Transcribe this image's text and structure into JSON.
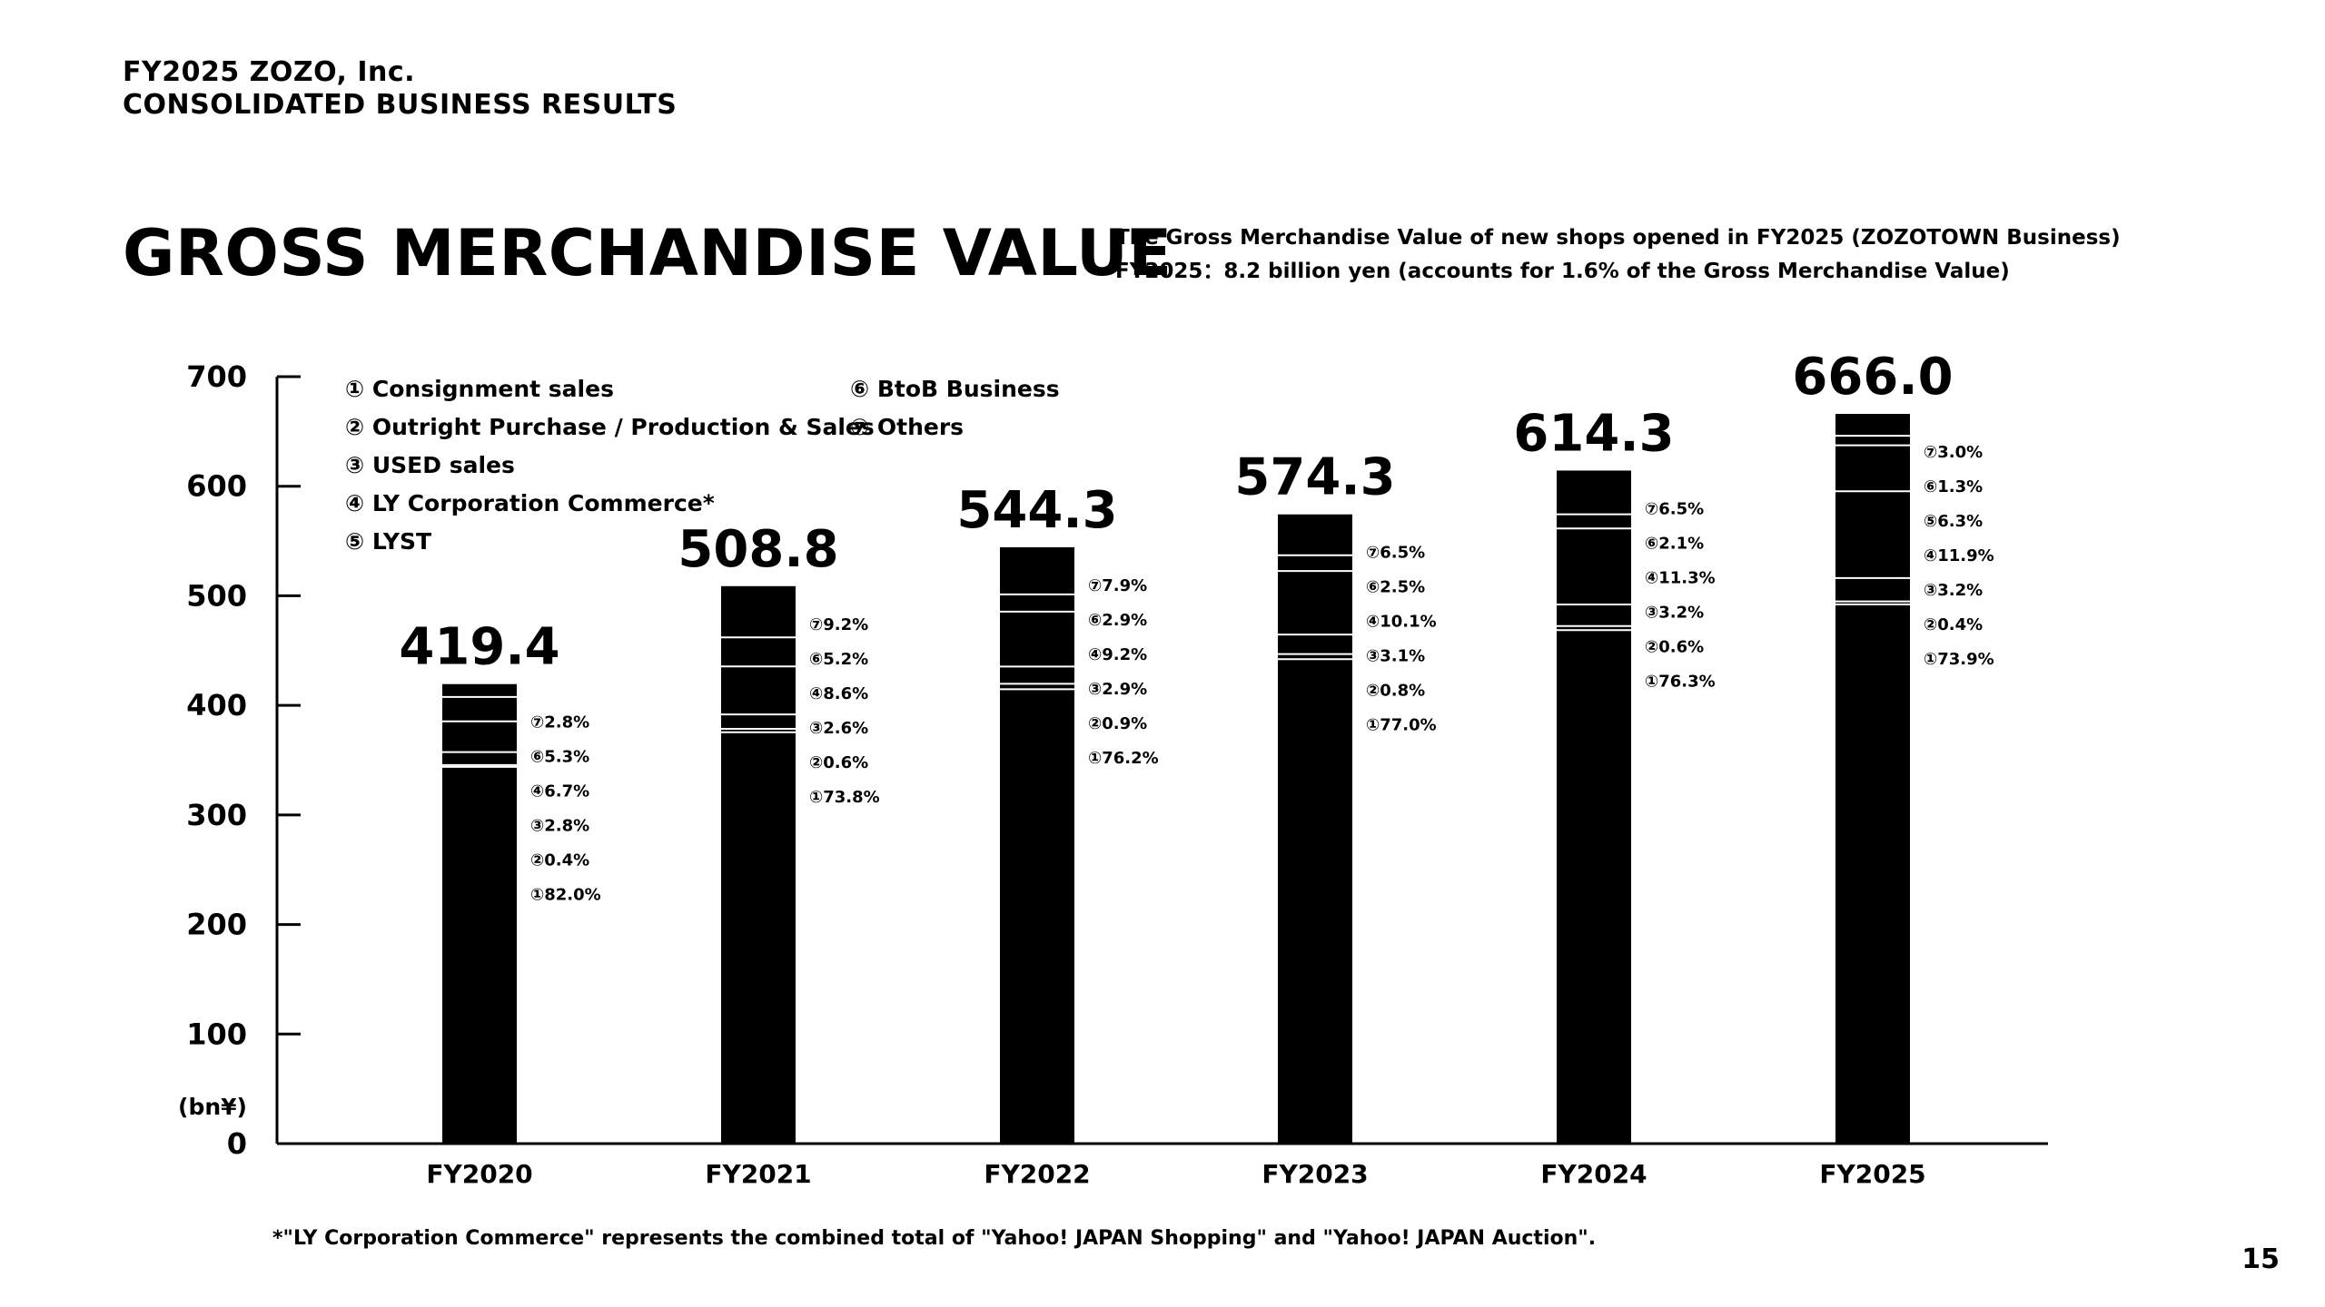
{
  "header": {
    "company": "FY2025 ZOZO, Inc.",
    "section": "CONSOLIDATED BUSINESS RESULTS"
  },
  "page_title": "GROSS MERCHANDISE VALUE",
  "note": {
    "line1": "The Gross Merchandise Value of new shops opened in FY2025 (ZOZOTOWN Business)",
    "line2": "FY2025：8.2 billion yen (accounts for 1.6% of the Gross Merchandise Value)"
  },
  "legend": {
    "left": [
      "① Consignment sales",
      "② Outright Purchase / Production & Sales",
      "③ USED sales",
      "④ LY Corporation Commerce*",
      "⑤ LYST"
    ],
    "right": [
      "⑥ BtoB Business",
      "⑦ Others"
    ]
  },
  "chart_data": {
    "type": "bar",
    "stacked": true,
    "unit_label": "(bn¥)",
    "ylim": [
      0,
      700
    ],
    "yticks": [
      0,
      100,
      200,
      300,
      400,
      500,
      600,
      700
    ],
    "categories": [
      "FY2020",
      "FY2021",
      "FY2022",
      "FY2023",
      "FY2024",
      "FY2025"
    ],
    "totals": [
      419.4,
      508.8,
      544.3,
      574.3,
      614.3,
      666.0
    ],
    "total_labels": [
      "419.4",
      "508.8",
      "544.3",
      "574.3",
      "614.3",
      "666.0"
    ],
    "segment_markers": [
      "①",
      "②",
      "③",
      "④",
      "⑤",
      "⑥",
      "⑦"
    ],
    "share_pct": [
      [
        82.0,
        0.4,
        2.8,
        6.7,
        null,
        5.3,
        2.8
      ],
      [
        73.8,
        0.6,
        2.6,
        8.6,
        null,
        5.2,
        9.2
      ],
      [
        76.2,
        0.9,
        2.9,
        9.2,
        null,
        2.9,
        7.9
      ],
      [
        77.0,
        0.8,
        3.1,
        10.1,
        null,
        2.5,
        6.5
      ],
      [
        76.3,
        0.6,
        3.2,
        11.3,
        null,
        2.1,
        6.5
      ],
      [
        73.9,
        0.4,
        3.2,
        11.9,
        6.3,
        1.3,
        3.0
      ]
    ],
    "share_labels": [
      [
        "⑦2.8%",
        "⑥5.3%",
        "④6.7%",
        "③2.8%",
        "②0.4%",
        "①82.0%"
      ],
      [
        "⑦9.2%",
        "⑥5.2%",
        "④8.6%",
        "③2.6%",
        "②0.6%",
        "①73.8%"
      ],
      [
        "⑦7.9%",
        "⑥2.9%",
        "④9.2%",
        "③2.9%",
        "②0.9%",
        "①76.2%"
      ],
      [
        "⑦6.5%",
        "⑥2.5%",
        "④10.1%",
        "③3.1%",
        "②0.8%",
        "①77.0%"
      ],
      [
        "⑦6.5%",
        "⑥2.1%",
        "④11.3%",
        "③3.2%",
        "②0.6%",
        "①76.3%"
      ],
      [
        "⑦3.0%",
        "⑥1.3%",
        "⑤6.3%",
        "④11.9%",
        "③3.2%",
        "②0.4%",
        "①73.9%"
      ]
    ],
    "grid": false,
    "legend_position": "top-left",
    "colors": {
      "bar": "#000000",
      "separator": "#ffffff",
      "axis": "#000000"
    }
  },
  "footnote": "*\"LY Corporation Commerce\" represents the combined total of \"Yahoo! JAPAN Shopping\" and \"Yahoo! JAPAN Auction\".",
  "page_number": "15"
}
